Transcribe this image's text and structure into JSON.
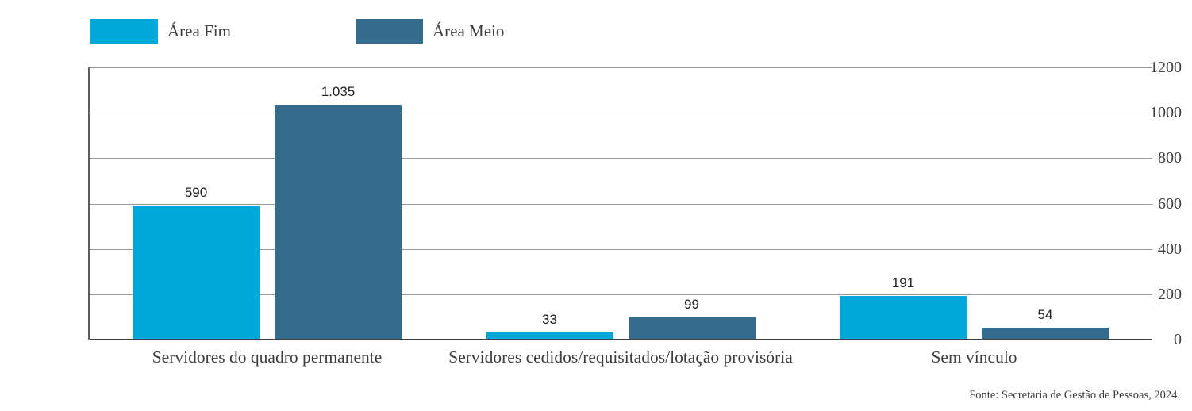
{
  "legend": {
    "items": [
      {
        "label": "Área Fim",
        "color": "#00a8da"
      },
      {
        "label": "Área Meio",
        "color": "#356b8d"
      }
    ]
  },
  "footer": {
    "source": "Fonte: Secretaria de Gestão de Pessoas, 2024."
  },
  "chart_data": {
    "type": "bar",
    "title": "",
    "xlabel": "",
    "ylabel": "",
    "categories": [
      "Servidores do quadro permanente",
      "Servidores cedidos/requisitados/lotação provisória",
      "Sem vínculo"
    ],
    "series": [
      {
        "name": "Área Fim",
        "color": "#00a8da",
        "values": [
          590,
          33,
          191
        ],
        "value_labels": [
          "590",
          "33",
          "191"
        ]
      },
      {
        "name": "Área Meio",
        "color": "#356b8d",
        "values": [
          1035,
          99,
          54
        ],
        "value_labels": [
          "1.035",
          "99",
          "54"
        ]
      }
    ],
    "ylim": [
      0,
      1200
    ],
    "yticks": [
      0,
      200,
      400,
      600,
      800,
      1000,
      1200
    ],
    "grid": true,
    "legend_position": "top-left"
  }
}
